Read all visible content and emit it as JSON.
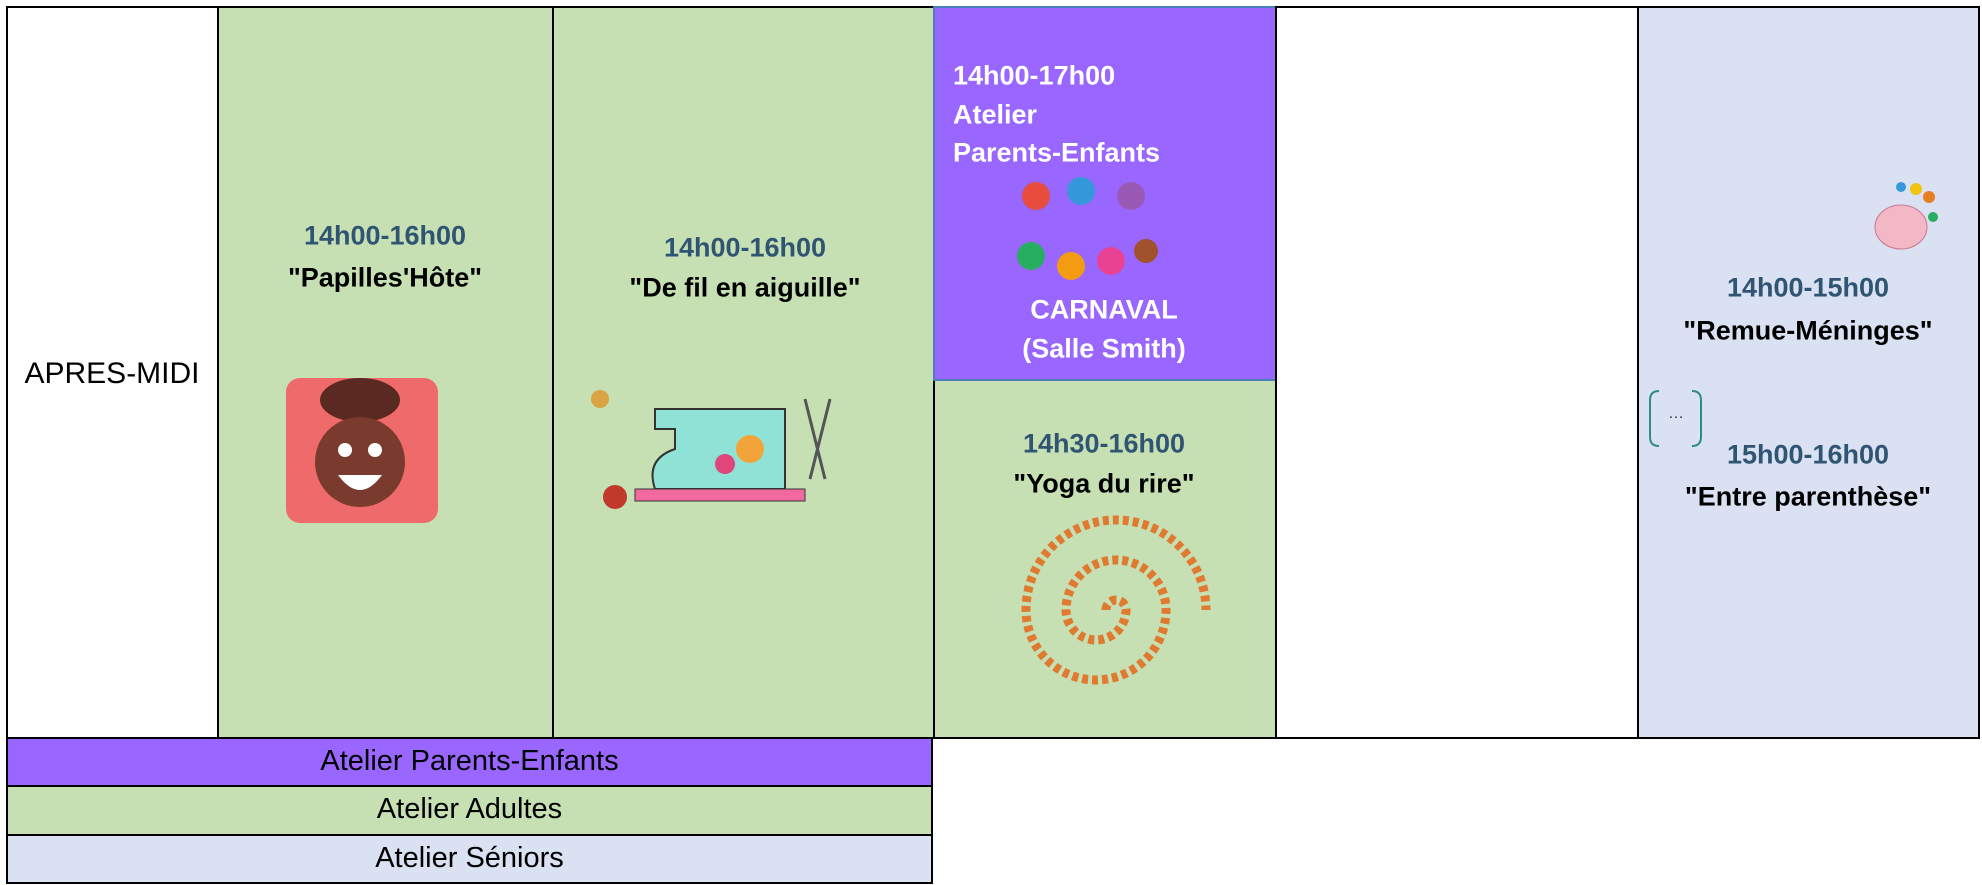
{
  "schedule": {
    "row_label": "APRES-MIDI",
    "cells": [
      {
        "time": "14h00-16h00",
        "title": "\"Papilles'Hôte\""
      },
      {
        "time": "14h00-16h00",
        "title": "\"De fil en aiguille\""
      },
      {
        "lines": [
          "14h00-17h00",
          "Atelier",
          "Parents-Enfants"
        ],
        "event": "CARNAVAL",
        "room": "(Salle Smith)"
      },
      {
        "time": "14h30-16h00",
        "title": "\"Yoga du rire\""
      },
      {
        "time": "14h00-15h00",
        "title": "\"Remue-Méninges\"",
        "icon_text": "…",
        "time2": "15h00-16h00",
        "title2": "\"Entre parenthèse\""
      }
    ]
  },
  "legend": [
    "Atelier Parents-Enfants",
    "Atelier Adultes",
    "Atelier Séniors"
  ]
}
